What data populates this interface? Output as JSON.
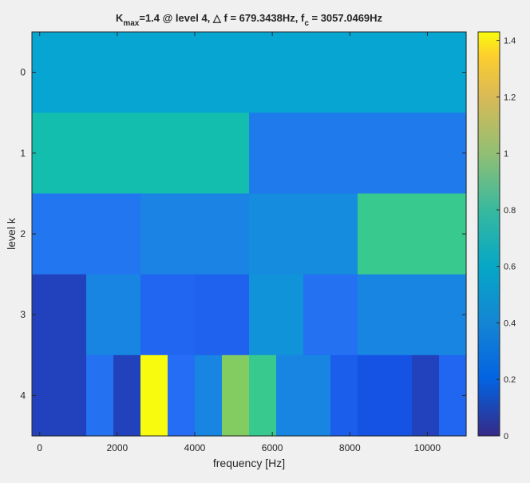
{
  "figure": {
    "title_main": "K",
    "title_sub_max": "max",
    "title_mid": "=1.4 @ level 4, ",
    "title_delta": "△",
    "title_df": " f = 679.3438Hz, f",
    "title_sub_c": "c",
    "title_end": " = 3057.0469Hz",
    "xlabel": "frequency [Hz]",
    "ylabel": "level k"
  },
  "chart_data": {
    "type": "heatmap",
    "colormap": "parula",
    "clim": [
      0,
      1.43
    ],
    "xlim": [
      -200,
      11000
    ],
    "x_ticks": [
      0,
      2000,
      4000,
      6000,
      8000,
      10000
    ],
    "x_tick_labels": [
      "0",
      "2000",
      "4000",
      "6000",
      "8000",
      "10000"
    ],
    "y_ticks": [
      0,
      1,
      2,
      3,
      4
    ],
    "y_tick_labels": [
      "0",
      "1",
      "2",
      "3",
      "4"
    ],
    "colorbar_ticks": [
      0,
      0.2,
      0.4,
      0.6,
      0.8,
      1,
      1.2,
      1.4
    ],
    "colorbar_tick_labels": [
      "0",
      "0.2",
      "0.4",
      "0.6",
      "0.8",
      "1",
      "1.2",
      "1.4"
    ],
    "rows": [
      {
        "level": 0,
        "values": [
          0.56
        ]
      },
      {
        "level": 1,
        "values": [
          0.74,
          0.34
        ]
      },
      {
        "level": 2,
        "values": [
          0.32,
          0.38,
          0.42,
          0.86
        ]
      },
      {
        "level": 3,
        "values": [
          0.08,
          0.39,
          0.24,
          0.22,
          0.46,
          0.3,
          0.39,
          0.39
        ]
      },
      {
        "level": 4,
        "values": [
          0.08,
          0.08,
          0.3,
          0.08,
          1.43,
          0.28,
          0.39,
          1.0,
          0.86,
          0.39,
          0.39,
          0.2,
          0.14,
          0.14,
          0.08,
          0.24
        ]
      }
    ]
  }
}
